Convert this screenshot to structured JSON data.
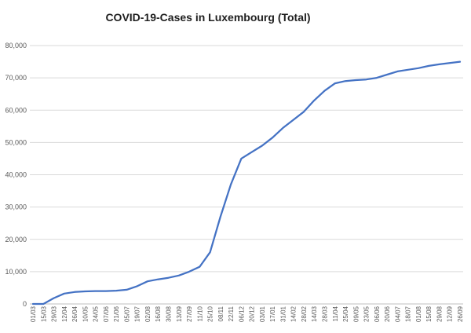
{
  "chart_data": {
    "type": "line",
    "title": "COVID-19-Cases in Luxembourg (Total)",
    "xlabel": "",
    "ylabel": "",
    "ylim": [
      0,
      80000
    ],
    "yticks": [
      "0",
      "10,000",
      "20,000",
      "30,000",
      "40,000",
      "50,000",
      "60,000",
      "70,000",
      "80,000"
    ],
    "yticks_values": [
      0,
      10000,
      20000,
      30000,
      40000,
      50000,
      60000,
      70000,
      80000
    ],
    "grid": true,
    "legend": "none",
    "line_color": "#4472C4",
    "categories": [
      "01/03",
      "15/03",
      "29/03",
      "12/04",
      "26/04",
      "10/05",
      "24/05",
      "07/06",
      "21/06",
      "05/07",
      "19/07",
      "02/08",
      "16/08",
      "30/08",
      "13/09",
      "27/09",
      "11/10",
      "25/10",
      "08/11",
      "22/11",
      "06/12",
      "20/12",
      "03/01",
      "17/01",
      "31/01",
      "14/02",
      "28/02",
      "14/03",
      "28/03",
      "11/04",
      "25/04",
      "09/05",
      "23/05",
      "06/06",
      "20/06",
      "04/07",
      "18/07",
      "01/08",
      "15/08",
      "29/08",
      "12/09",
      "26/09"
    ],
    "series": [
      {
        "values": [
          0,
          0,
          1800,
          3200,
          3700,
          3900,
          4000,
          4000,
          4100,
          4400,
          5500,
          7000,
          7600,
          8100,
          8800,
          10000,
          11500,
          16000,
          27000,
          37000,
          45000,
          47000,
          49000,
          51500,
          54500,
          57000,
          59500,
          63000,
          66000,
          68300,
          69000,
          69300,
          69500,
          70000,
          71000,
          72000,
          72500,
          73000,
          73700,
          74200,
          74600,
          75000
        ]
      }
    ]
  }
}
